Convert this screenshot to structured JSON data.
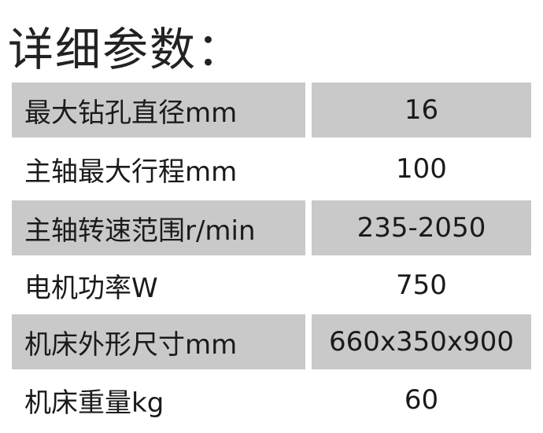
{
  "title": "详细参数：",
  "rows": [
    {
      "label": "最大钻孔直径mm",
      "value": "16",
      "shaded": true
    },
    {
      "label": "主轴最大行程mm",
      "value": "100",
      "shaded": false
    },
    {
      "label": "主轴转速范围r/min",
      "value": "235-2050",
      "shaded": true
    },
    {
      "label": "电机功率W",
      "value": "750",
      "shaded": false
    },
    {
      "label": "机床外形尺寸mm",
      "value": "660x350x900",
      "shaded": true
    },
    {
      "label": "机床重量kg",
      "value": "60",
      "shaded": false
    }
  ],
  "colors": {
    "shade": "#c9c9c9",
    "text": "#1a1a1a"
  }
}
